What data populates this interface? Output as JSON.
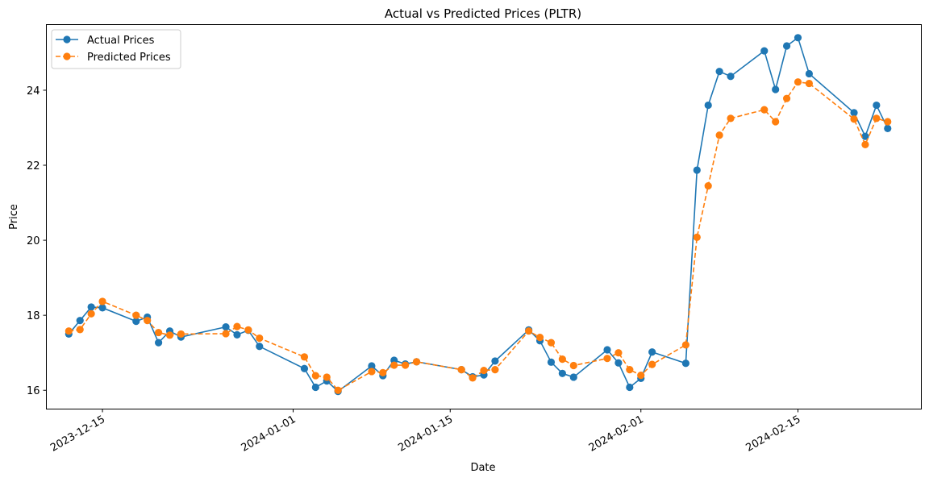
{
  "chart_data": {
    "type": "line",
    "title": "Actual vs Predicted Prices (PLTR)",
    "xlabel": "Date",
    "ylabel": "Price",
    "xlim": [
      "2023-12-10",
      "2024-02-26"
    ],
    "ylim": [
      15.5,
      25.75
    ],
    "x_ticks": [
      "2023-12-15",
      "2024-01-01",
      "2024-01-15",
      "2024-02-01",
      "2024-02-15"
    ],
    "y_ticks": [
      16,
      18,
      20,
      22,
      24
    ],
    "grid": false,
    "legend_position": "top-left",
    "series": [
      {
        "name": "Actual Prices",
        "color": "#1f77b4",
        "style": "solid",
        "marker": "circle",
        "points": [
          [
            "2023-12-12",
            17.5
          ],
          [
            "2023-12-13",
            17.86
          ],
          [
            "2023-12-14",
            18.22
          ],
          [
            "2023-12-15",
            18.2
          ],
          [
            "2023-12-18",
            17.84
          ],
          [
            "2023-12-19",
            17.95
          ],
          [
            "2023-12-20",
            17.27
          ],
          [
            "2023-12-21",
            17.58
          ],
          [
            "2023-12-22",
            17.42
          ],
          [
            "2023-12-26",
            17.69
          ],
          [
            "2023-12-27",
            17.48
          ],
          [
            "2023-12-28",
            17.6
          ],
          [
            "2023-12-29",
            17.17
          ],
          [
            "2024-01-02",
            16.58
          ],
          [
            "2024-01-03",
            16.08
          ],
          [
            "2024-01-04",
            16.25
          ],
          [
            "2024-01-05",
            15.97
          ],
          [
            "2024-01-08",
            16.65
          ],
          [
            "2024-01-09",
            16.39
          ],
          [
            "2024-01-10",
            16.8
          ],
          [
            "2024-01-11",
            16.7
          ],
          [
            "2024-01-12",
            16.76
          ],
          [
            "2024-01-16",
            16.55
          ],
          [
            "2024-01-17",
            16.36
          ],
          [
            "2024-01-18",
            16.41
          ],
          [
            "2024-01-19",
            16.78
          ],
          [
            "2024-01-22",
            17.61
          ],
          [
            "2024-01-23",
            17.32
          ],
          [
            "2024-01-24",
            16.75
          ],
          [
            "2024-01-25",
            16.45
          ],
          [
            "2024-01-26",
            16.35
          ],
          [
            "2024-01-29",
            17.08
          ],
          [
            "2024-01-30",
            16.73
          ],
          [
            "2024-01-31",
            16.08
          ],
          [
            "2024-02-01",
            16.32
          ],
          [
            "2024-02-02",
            17.02
          ],
          [
            "2024-02-05",
            16.72
          ],
          [
            "2024-02-06",
            21.87
          ],
          [
            "2024-02-07",
            23.6
          ],
          [
            "2024-02-08",
            24.5
          ],
          [
            "2024-02-09",
            24.37
          ],
          [
            "2024-02-12",
            25.05
          ],
          [
            "2024-02-13",
            24.02
          ],
          [
            "2024-02-14",
            25.18
          ],
          [
            "2024-02-15",
            25.4
          ],
          [
            "2024-02-16",
            24.44
          ],
          [
            "2024-02-20",
            23.4
          ],
          [
            "2024-02-21",
            22.77
          ],
          [
            "2024-02-22",
            23.6
          ],
          [
            "2024-02-23",
            22.98
          ]
        ]
      },
      {
        "name": "Predicted Prices",
        "color": "#ff7f0e",
        "style": "dashed",
        "marker": "circle",
        "points": [
          [
            "2023-12-12",
            17.58
          ],
          [
            "2023-12-13",
            17.62
          ],
          [
            "2023-12-14",
            18.04
          ],
          [
            "2023-12-15",
            18.37
          ],
          [
            "2023-12-18",
            18.0
          ],
          [
            "2023-12-19",
            17.86
          ],
          [
            "2023-12-20",
            17.54
          ],
          [
            "2023-12-21",
            17.47
          ],
          [
            "2023-12-22",
            17.5
          ],
          [
            "2023-12-26",
            17.51
          ],
          [
            "2023-12-27",
            17.7
          ],
          [
            "2023-12-28",
            17.61
          ],
          [
            "2023-12-29",
            17.39
          ],
          [
            "2024-01-02",
            16.89
          ],
          [
            "2024-01-03",
            16.39
          ],
          [
            "2024-01-04",
            16.35
          ],
          [
            "2024-01-05",
            16.0
          ],
          [
            "2024-01-08",
            16.5
          ],
          [
            "2024-01-09",
            16.47
          ],
          [
            "2024-01-10",
            16.67
          ],
          [
            "2024-01-11",
            16.67
          ],
          [
            "2024-01-12",
            16.76
          ],
          [
            "2024-01-16",
            16.55
          ],
          [
            "2024-01-17",
            16.33
          ],
          [
            "2024-01-18",
            16.53
          ],
          [
            "2024-01-19",
            16.55
          ],
          [
            "2024-01-22",
            17.58
          ],
          [
            "2024-01-23",
            17.41
          ],
          [
            "2024-01-24",
            17.27
          ],
          [
            "2024-01-25",
            16.83
          ],
          [
            "2024-01-26",
            16.66
          ],
          [
            "2024-01-29",
            16.85
          ],
          [
            "2024-01-30",
            17.0
          ],
          [
            "2024-01-31",
            16.55
          ],
          [
            "2024-02-01",
            16.4
          ],
          [
            "2024-02-02",
            16.69
          ],
          [
            "2024-02-05",
            17.21
          ],
          [
            "2024-02-06",
            20.08
          ],
          [
            "2024-02-07",
            21.45
          ],
          [
            "2024-02-08",
            22.8
          ],
          [
            "2024-02-09",
            23.25
          ],
          [
            "2024-02-12",
            23.48
          ],
          [
            "2024-02-13",
            23.16
          ],
          [
            "2024-02-14",
            23.78
          ],
          [
            "2024-02-15",
            24.22
          ],
          [
            "2024-02-16",
            24.18
          ],
          [
            "2024-02-20",
            23.23
          ],
          [
            "2024-02-21",
            22.55
          ],
          [
            "2024-02-22",
            23.25
          ],
          [
            "2024-02-23",
            23.16
          ]
        ]
      }
    ]
  }
}
